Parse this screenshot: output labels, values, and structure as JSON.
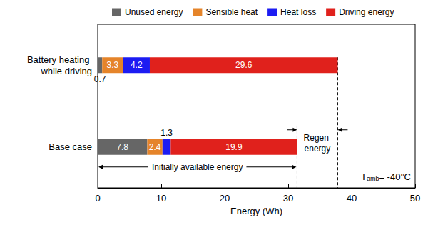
{
  "chart_data": {
    "type": "bar",
    "orientation": "horizontal",
    "stacked": true,
    "data_labels": true,
    "legend": "top",
    "grid": false,
    "categories": [
      "Battery heating while driving",
      "Base case"
    ],
    "series": [
      {
        "name": "Unused energy",
        "color": "#666666",
        "values": [
          0.7,
          7.8
        ]
      },
      {
        "name": "Sensible heat",
        "color": "#e5842a",
        "values": [
          3.3,
          2.4
        ]
      },
      {
        "name": "Heat loss",
        "color": "#1c1cf2",
        "values": [
          4.2,
          1.3
        ]
      },
      {
        "name": "Driving energy",
        "color": "#e0211c",
        "values": [
          29.6,
          19.9
        ]
      }
    ],
    "xlabel": "Energy (Wh)",
    "xlim": [
      0,
      50
    ],
    "xticks": [
      0,
      10,
      20,
      30,
      40,
      50
    ],
    "annotations": {
      "regen": "Regen energy",
      "initial": "Initially available energy",
      "temperature": {
        "symbol": "T",
        "subscript": "amb",
        "text": "= -40°C"
      }
    }
  }
}
